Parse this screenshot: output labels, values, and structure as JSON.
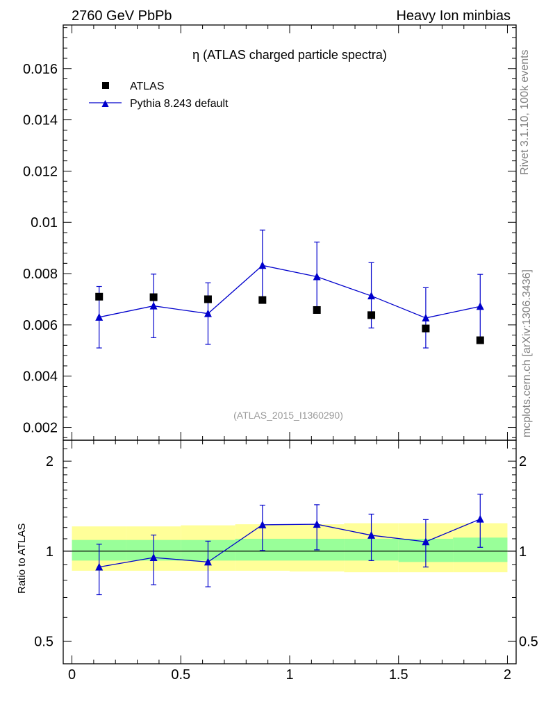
{
  "header": {
    "left": "2760 GeV PbPb",
    "right": "Heavy Ion minbias"
  },
  "side_labels": {
    "top": "Rivet 3.1.10,  100k events",
    "bottom": "mcplots.cern.ch [arXiv:1306.3436]"
  },
  "reference_label": "(ATLAS_2015_I1360290)",
  "chart_data": [
    {
      "type": "scatter",
      "title": "η (ATLAS charged particle spectra)",
      "xlabel": "",
      "ylabel": "",
      "xlim": [
        -0.04,
        2.04
      ],
      "ylim": [
        0.0015,
        0.0177
      ],
      "yticks": [
        0.002,
        0.004,
        0.006,
        0.008,
        0.01,
        0.012,
        0.014,
        0.016
      ],
      "ytick_labels": [
        "0.002",
        "0.004",
        "0.006",
        "0.008",
        "0.01",
        "0.012",
        "0.014",
        "0.016"
      ],
      "legend_position": "top-left",
      "series": [
        {
          "name": "ATLAS",
          "marker": "square",
          "color": "#000000",
          "x": [
            0.125,
            0.375,
            0.625,
            0.875,
            1.125,
            1.375,
            1.625,
            1.875
          ],
          "y": [
            0.0071,
            0.00708,
            0.007,
            0.00697,
            0.00658,
            0.00638,
            0.00586,
            0.0054
          ]
        },
        {
          "name": "Pythia 8.243 default",
          "marker": "triangle",
          "color": "#0000cc",
          "x": [
            0.125,
            0.375,
            0.625,
            0.875,
            1.125,
            1.375,
            1.625,
            1.875
          ],
          "y": [
            0.0063,
            0.00674,
            0.00644,
            0.00832,
            0.00788,
            0.00713,
            0.00627,
            0.00672
          ],
          "yerr_low": [
            0.0012,
            0.00124,
            0.0012,
            0.0014,
            0.0013,
            0.00125,
            0.00117,
            0.0013
          ],
          "yerr_high": [
            0.0012,
            0.00124,
            0.0012,
            0.00138,
            0.00135,
            0.0013,
            0.00118,
            0.00125
          ]
        }
      ]
    },
    {
      "type": "line",
      "ylabel": "Ratio to ATLAS",
      "xlim": [
        -0.04,
        2.04
      ],
      "ylim": [
        0.42,
        2.35
      ],
      "ylog": true,
      "yticks": [
        0.5,
        1,
        2
      ],
      "ytick_labels": [
        "0.5",
        "1",
        "2"
      ],
      "xticks": [
        0,
        0.5,
        1,
        1.5,
        2
      ],
      "xtick_labels": [
        "0",
        "0.5",
        "1",
        "1.5",
        "2"
      ],
      "reference_line": 1,
      "bands": {
        "x_edges": [
          0,
          0.25,
          0.5,
          0.75,
          1.0,
          1.25,
          1.5,
          1.75,
          2.0
        ],
        "inner": {
          "color": "#99ff99",
          "low": [
            0.93,
            0.93,
            0.93,
            0.93,
            0.93,
            0.93,
            0.92,
            0.92
          ],
          "high": [
            1.09,
            1.09,
            1.09,
            1.1,
            1.1,
            1.1,
            1.1,
            1.11
          ]
        },
        "outer": {
          "color": "#ffff99",
          "low": [
            0.86,
            0.86,
            0.86,
            0.86,
            0.855,
            0.85,
            0.85,
            0.85
          ],
          "high": [
            1.21,
            1.21,
            1.22,
            1.23,
            1.23,
            1.24,
            1.24,
            1.24
          ]
        }
      },
      "series": [
        {
          "name": "Pythia 8.243 default",
          "marker": "triangle",
          "color": "#0000cc",
          "x": [
            0.125,
            0.375,
            0.625,
            0.875,
            1.125,
            1.375,
            1.625,
            1.875
          ],
          "y": [
            0.885,
            0.952,
            0.92,
            1.225,
            1.23,
            1.13,
            1.075,
            1.28
          ],
          "yerr_low": [
            0.17,
            0.18,
            0.16,
            0.22,
            0.22,
            0.2,
            0.19,
            0.25
          ],
          "yerr_high": [
            0.17,
            0.18,
            0.16,
            0.2,
            0.2,
            0.2,
            0.2,
            0.27
          ]
        }
      ]
    }
  ]
}
